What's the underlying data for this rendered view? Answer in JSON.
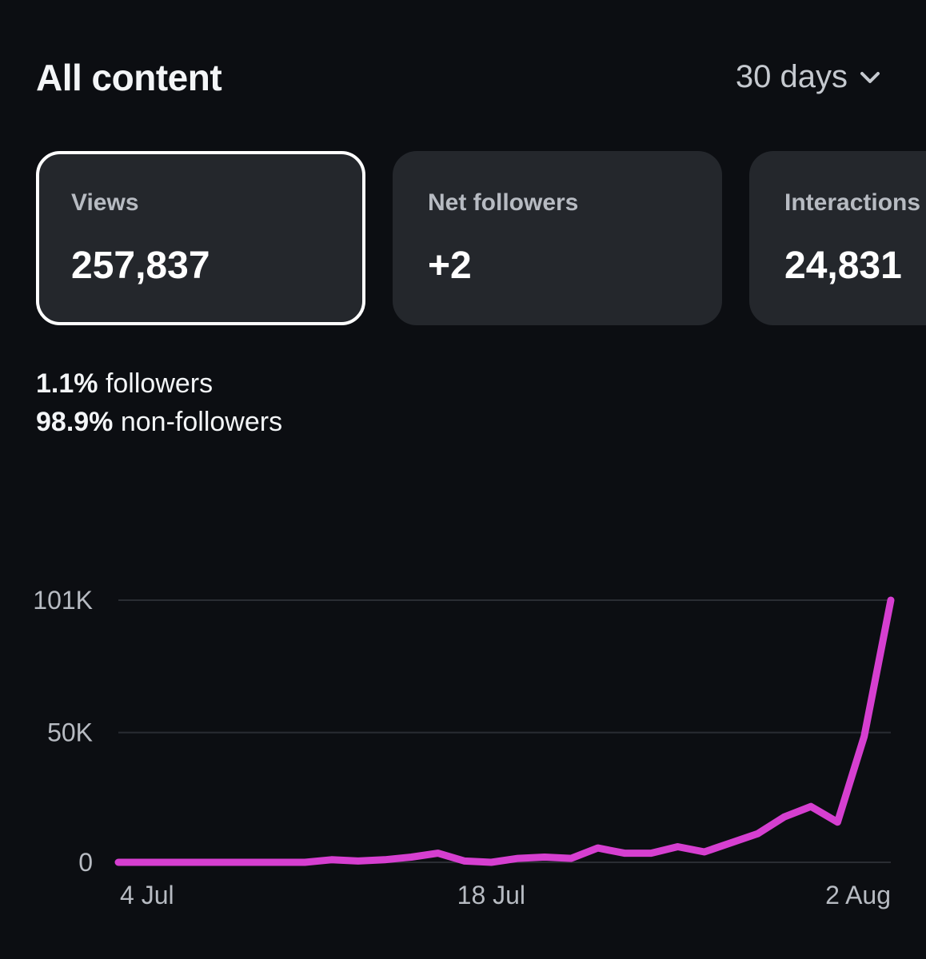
{
  "header": {
    "title": "All content",
    "range_label": "30 days"
  },
  "cards": [
    {
      "label": "Views",
      "value": "257,837"
    },
    {
      "label": "Net followers",
      "value": "+2"
    },
    {
      "label": "Interactions",
      "value": "24,831"
    }
  ],
  "breakdown": {
    "followers_pct": "1.1%",
    "followers_label": "followers",
    "non_followers_pct": "98.9%",
    "non_followers_label": "non-followers"
  },
  "colors": {
    "background": "#0c0e12",
    "card": "#24272c",
    "line": "#d63fd0",
    "grid": "#2a2d33"
  },
  "chart_data": {
    "type": "line",
    "title": "",
    "xlabel": "",
    "ylabel": "",
    "x_ticks": [
      "4 Jul",
      "18 Jul",
      "2 Aug"
    ],
    "y_ticks": [
      {
        "value": 101000,
        "label": "101K"
      },
      {
        "value": 50000,
        "label": "50K"
      },
      {
        "value": 0,
        "label": "0"
      }
    ],
    "ylim": [
      0,
      101000
    ],
    "grid": true,
    "series": [
      {
        "values": [
          0,
          0,
          0,
          0,
          0,
          0,
          0,
          0,
          1000,
          500,
          1000,
          2000,
          3500,
          500,
          0,
          1500,
          2000,
          1500,
          5500,
          3500,
          3500,
          6000,
          4000,
          7500,
          11000,
          17500,
          21500,
          15500,
          48500,
          101000
        ]
      }
    ]
  }
}
